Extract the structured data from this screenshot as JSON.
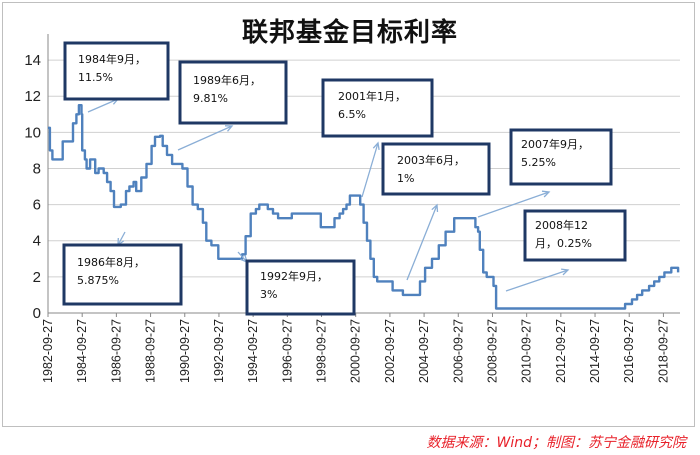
{
  "chart_data": {
    "type": "line",
    "title": "联邦基金目标利率",
    "xlabel": "",
    "ylabel": "",
    "ylim": [
      0,
      15
    ],
    "yticks": [
      "0",
      "2",
      "4",
      "6",
      "8",
      "10",
      "12",
      "14"
    ],
    "xticks": [
      "1982-09-27",
      "1984-09-27",
      "1986-09-27",
      "1988-09-27",
      "1990-09-27",
      "1992-09-27",
      "1994-09-27",
      "1996-09-27",
      "1998-09-27",
      "2000-09-27",
      "2002-09-27",
      "2004-09-27",
      "2006-09-27",
      "2008-09-27",
      "2010-09-27",
      "2012-09-27",
      "2014-09-27",
      "2016-09-27",
      "2018-09-27"
    ],
    "grid": "horizontal",
    "legend": "none",
    "line_color": "#4f81bd",
    "series": [
      {
        "x": [
          1982.74,
          1982.85,
          1983.0,
          1983.3,
          1983.6,
          1984.0,
          1984.2,
          1984.4,
          1984.55,
          1984.7,
          1984.74,
          1984.9,
          1985.0,
          1985.2,
          1985.5,
          1985.7,
          1986.0,
          1986.2,
          1986.4,
          1986.6,
          1986.7,
          1987.0,
          1987.3,
          1987.5,
          1987.75,
          1987.9,
          1988.2,
          1988.5,
          1988.8,
          1989.0,
          1989.3,
          1989.45,
          1989.7,
          1990.0,
          1990.4,
          1990.6,
          1990.9,
          1991.2,
          1991.5,
          1991.8,
          1992.0,
          1992.3,
          1992.7,
          1993.2,
          1993.8,
          1994.1,
          1994.3,
          1994.6,
          1994.9,
          1995.1,
          1995.6,
          1995.9,
          1996.2,
          1996.5,
          1997.0,
          1997.3,
          1998.0,
          1998.7,
          1998.9,
          1999.1,
          1999.5,
          1999.8,
          2000.0,
          2000.2,
          2000.4,
          2000.7,
          2000.8,
          2001.0,
          2001.2,
          2001.4,
          2001.6,
          2001.8,
          2002.0,
          2002.5,
          2002.9,
          2003.2,
          2003.5,
          2004.0,
          2004.5,
          2004.8,
          2005.2,
          2005.6,
          2006.0,
          2006.5,
          2007.0,
          2007.5,
          2007.74,
          2007.9,
          2008.0,
          2008.2,
          2008.4,
          2008.6,
          2008.8,
          2008.95,
          2010.0,
          2012.0,
          2014.0,
          2015.9,
          2016.5,
          2016.9,
          2017.2,
          2017.5,
          2017.9,
          2018.2,
          2018.5,
          2018.8,
          2019.2,
          2019.4,
          2019.6
        ]
      },
      {
        "name": "",
        "values": [
          10.25,
          9.0,
          8.5,
          8.5,
          9.5,
          9.5,
          10.5,
          11.0,
          11.5,
          11.0,
          9.0,
          8.5,
          8.0,
          8.5,
          7.75,
          8.0,
          7.75,
          7.25,
          6.75,
          5.875,
          5.875,
          6.0,
          6.75,
          7.0,
          7.25,
          6.75,
          7.5,
          8.25,
          9.25,
          9.75,
          9.81,
          9.25,
          8.75,
          8.25,
          8.25,
          8.0,
          7.0,
          6.0,
          5.75,
          5.0,
          4.0,
          3.75,
          3.0,
          3.0,
          3.0,
          3.25,
          4.25,
          5.5,
          5.75,
          6.0,
          5.75,
          5.5,
          5.25,
          5.25,
          5.5,
          5.5,
          5.5,
          4.75,
          4.75,
          4.75,
          5.25,
          5.5,
          5.75,
          6.0,
          6.5,
          6.5,
          6.5,
          6.0,
          5.0,
          4.0,
          3.0,
          2.0,
          1.75,
          1.75,
          1.25,
          1.25,
          1.0,
          1.0,
          1.75,
          2.5,
          3.0,
          3.75,
          4.5,
          5.25,
          5.25,
          5.25,
          4.75,
          4.5,
          3.5,
          2.25,
          2.0,
          2.0,
          1.5,
          0.25,
          0.25,
          0.25,
          0.25,
          0.25,
          0.5,
          0.75,
          1.0,
          1.25,
          1.5,
          1.75,
          2.0,
          2.25,
          2.5,
          2.5,
          2.25
        ]
      }
    ],
    "annotations": [
      {
        "line1": "1984年9月，",
        "line2": "11.5%"
      },
      {
        "line1": "1986年8月，",
        "line2": "5.875%"
      },
      {
        "line1": "1989年6月，",
        "line2": "9.81%"
      },
      {
        "line1": "1992年9月，",
        "line2": "3%"
      },
      {
        "line1": "2001年1月，",
        "line2": "6.5%"
      },
      {
        "line1": "2003年6月，",
        "line2": "1%"
      },
      {
        "line1": "2007年9月，",
        "line2": "5.25%"
      },
      {
        "line1": "2008年12",
        "line2": "月，0.25%"
      }
    ]
  },
  "footer": {
    "source": "数据来源：Wind；制图：苏宁金融研究院"
  }
}
